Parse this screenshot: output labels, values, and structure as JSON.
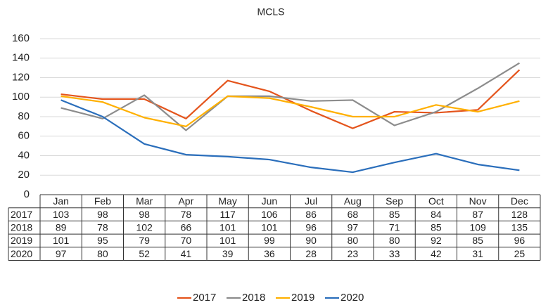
{
  "chart_data": {
    "type": "line",
    "title": "MCLS",
    "categories": [
      "Jan",
      "Feb",
      "Mar",
      "Apr",
      "May",
      "Jun",
      "Jul",
      "Aug",
      "Sep",
      "Oct",
      "Nov",
      "Dec"
    ],
    "series": [
      {
        "name": "2017",
        "color": "#e4541c",
        "values": [
          103,
          98,
          98,
          78,
          117,
          106,
          86,
          68,
          85,
          84,
          87,
          128
        ]
      },
      {
        "name": "2018",
        "color": "#8c8c8c",
        "values": [
          89,
          78,
          102,
          66,
          101,
          101,
          96,
          97,
          71,
          85,
          109,
          135
        ]
      },
      {
        "name": "2019",
        "color": "#ffb000",
        "values": [
          101,
          95,
          79,
          70,
          101,
          99,
          90,
          80,
          80,
          92,
          85,
          96
        ]
      },
      {
        "name": "2020",
        "color": "#2a6ebb",
        "values": [
          97,
          80,
          52,
          41,
          39,
          36,
          28,
          23,
          33,
          42,
          31,
          25
        ]
      }
    ],
    "ylim": [
      0,
      160
    ],
    "yticks": [
      0,
      20,
      40,
      60,
      80,
      100,
      120,
      140,
      160
    ],
    "grid": true,
    "legend": "bottom"
  }
}
